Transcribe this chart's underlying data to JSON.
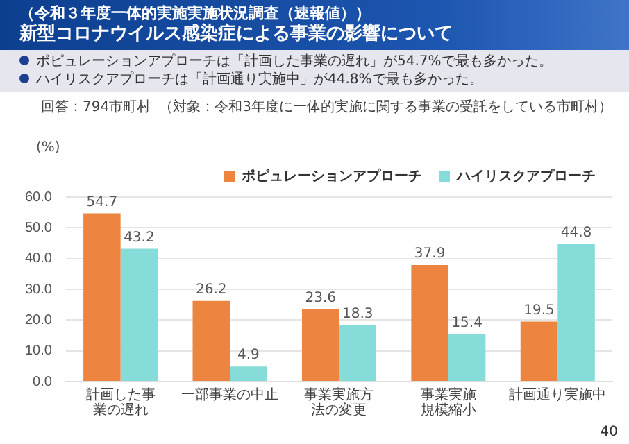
{
  "chart_data": {
    "type": "bar",
    "subtitle": "（令和３年度一体的実施実施状況調査（速報値））",
    "title": "新型コロナウイルス感染症による事業の影響について",
    "ylabel": "(%)",
    "categories": [
      "計画した事業の遅れ",
      "一部事業の中止",
      "事業実施方法の変更",
      "事業実施規模縮小",
      "計画通り実施中"
    ],
    "series": [
      {
        "name": "ポピュレーションアプローチ",
        "color": "#ed843f",
        "values": [
          54.7,
          26.2,
          23.6,
          37.9,
          19.5
        ]
      },
      {
        "name": "ハイリスクアプローチ",
        "color": "#86dcd8",
        "values": [
          43.2,
          4.9,
          18.3,
          15.4,
          44.8
        ]
      }
    ],
    "ylim": [
      0,
      60
    ],
    "yticks": [
      {
        "value": 0,
        "label": "0.0"
      },
      {
        "value": 10,
        "label": "10.0"
      },
      {
        "value": 20,
        "label": "20.0"
      },
      {
        "value": 30,
        "label": "30.0"
      },
      {
        "value": 40,
        "label": "40.0"
      },
      {
        "value": 50,
        "label": "50.0"
      },
      {
        "value": 60,
        "label": "60.0"
      }
    ],
    "grid": "y",
    "legend": "top right",
    "data_labels": true,
    "annotations": [
      "ポピュレーションアプローチは「計画した事業の遅れ」が54.7%で最も多かった。",
      "ハイリスクアプローチは「計画通り実施中」が44.8%で最も多かった。",
      "回答：794市町村",
      "（対象：令和3年度に一体的実施に関する事業の受託をしている市町村）",
      "40"
    ]
  }
}
